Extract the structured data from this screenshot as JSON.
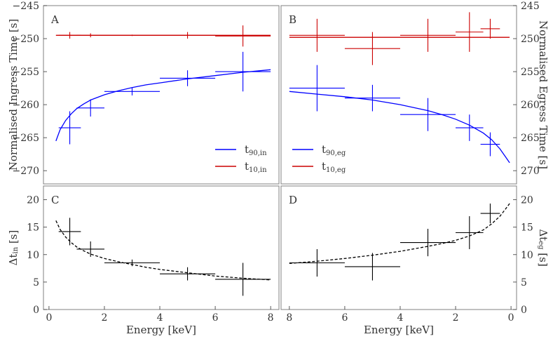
{
  "chart_data": [
    {
      "panel": "A",
      "type": "scatter",
      "ylabel": "Normalised Ingress Time [s]",
      "xlabel": "",
      "xlim": [
        -0.2,
        8.3
      ],
      "ylim": [
        -272,
        -245
      ],
      "yticks": [
        -245,
        -250,
        -255,
        -260,
        -265,
        -270
      ],
      "legend": {
        "position": "bottom-right",
        "entries": [
          {
            "label_base": "t",
            "label_sub": "90,in",
            "color": "#0000ff"
          },
          {
            "label_base": "t",
            "label_sub": "10,in",
            "color": "#cc0000"
          }
        ]
      },
      "series": [
        {
          "name": "t90,in",
          "color": "#0000ff",
          "points": [
            {
              "x": 0.75,
              "y": -263.5,
              "xerr": 0.4,
              "yerr": 2.5
            },
            {
              "x": 1.5,
              "y": -260.5,
              "xerr": 0.5,
              "yerr": 1.3
            },
            {
              "x": 3.0,
              "y": -258.0,
              "xerr": 1.0,
              "yerr": 0.6
            },
            {
              "x": 5.0,
              "y": -256.0,
              "xerr": 1.0,
              "yerr": 1.2
            },
            {
              "x": 7.0,
              "y": -255.0,
              "xerr": 1.0,
              "yerr": 3.0
            }
          ],
          "fit": {
            "x": [
              0.25,
              0.4,
              0.6,
              0.8,
              1.0,
              1.25,
              1.5,
              2.0,
              2.5,
              3.0,
              3.5,
              4.0,
              5.0,
              6.0,
              7.0,
              8.0
            ],
            "y": [
              -265.5,
              -263.8,
              -262.4,
              -261.4,
              -260.6,
              -259.9,
              -259.3,
              -258.5,
              -257.9,
              -257.4,
              -257.0,
              -256.7,
              -256.1,
              -255.6,
              -255.1,
              -254.7
            ]
          }
        },
        {
          "name": "t10,in",
          "color": "#cc0000",
          "points": [
            {
              "x": 0.75,
              "y": -249.5,
              "xerr": 0.4,
              "yerr": 0.5
            },
            {
              "x": 1.5,
              "y": -249.5,
              "xerr": 0.5,
              "yerr": 0.3
            },
            {
              "x": 3.0,
              "y": -249.5,
              "xerr": 1.0,
              "yerr": 0.1
            },
            {
              "x": 5.0,
              "y": -249.5,
              "xerr": 1.0,
              "yerr": 0.5
            },
            {
              "x": 7.0,
              "y": -249.6,
              "xerr": 1.0,
              "yerr": 1.6
            }
          ],
          "fit": {
            "x": [
              0.25,
              8.0
            ],
            "y": [
              -249.5,
              -249.5
            ]
          }
        }
      ]
    },
    {
      "panel": "B",
      "type": "scatter",
      "ylabel": "Normalised Egress Time [s]",
      "xlabel": "",
      "xlim": [
        8.3,
        -0.2
      ],
      "ylim": [
        272,
        245
      ],
      "yticks": [
        245,
        250,
        255,
        260,
        265,
        270
      ],
      "legend": {
        "position": "bottom-left",
        "entries": [
          {
            "label_base": "t",
            "label_sub": "90,eg",
            "color": "#0000ff"
          },
          {
            "label_base": "t",
            "label_sub": "10,eg",
            "color": "#cc0000"
          }
        ]
      },
      "series": [
        {
          "name": "t90,eg",
          "color": "#0000ff",
          "points": [
            {
              "x": 7.0,
              "y": 257.5,
              "xerr": 1.0,
              "yerr": 3.5
            },
            {
              "x": 5.0,
              "y": 259.0,
              "xerr": 1.0,
              "yerr": 2.0
            },
            {
              "x": 3.0,
              "y": 261.5,
              "xerr": 1.0,
              "yerr": 2.5
            },
            {
              "x": 1.5,
              "y": 263.5,
              "xerr": 0.5,
              "yerr": 2.0
            },
            {
              "x": 0.75,
              "y": 266.0,
              "xerr": 0.35,
              "yerr": 1.8
            }
          ],
          "fit": {
            "x": [
              8.0,
              7.0,
              6.0,
              5.0,
              4.0,
              3.0,
              2.5,
              2.0,
              1.5,
              1.0,
              0.7,
              0.4,
              0.2,
              0.05
            ],
            "y": [
              258.0,
              258.4,
              258.8,
              259.3,
              260.0,
              260.9,
              261.5,
              262.2,
              263.1,
              264.3,
              265.3,
              266.7,
              267.9,
              268.8
            ]
          }
        },
        {
          "name": "t10,eg",
          "color": "#cc0000",
          "points": [
            {
              "x": 7.0,
              "y": 249.5,
              "xerr": 1.0,
              "yerr": 2.5
            },
            {
              "x": 5.0,
              "y": 251.5,
              "xerr": 1.0,
              "yerr": 2.5
            },
            {
              "x": 3.0,
              "y": 249.5,
              "xerr": 1.0,
              "yerr": 2.5
            },
            {
              "x": 1.5,
              "y": 249.0,
              "xerr": 0.5,
              "yerr": 3.0
            },
            {
              "x": 0.75,
              "y": 248.5,
              "xerr": 0.35,
              "yerr": 1.5
            }
          ],
          "fit": {
            "x": [
              8.0,
              0.05
            ],
            "y": [
              249.8,
              249.8
            ]
          }
        }
      ]
    },
    {
      "panel": "C",
      "type": "scatter",
      "ylabel_base": "Δt",
      "ylabel_sub": "in",
      "ylabel_unit": " [s]",
      "xlabel": "Energy [keV]",
      "xlim": [
        -0.2,
        8.3
      ],
      "ylim": [
        0,
        22.5
      ],
      "xticks": [
        0,
        2,
        4,
        6,
        8
      ],
      "yticks": [
        0,
        5,
        10,
        15,
        20
      ],
      "series": [
        {
          "name": "Δt_in",
          "color": "#000000",
          "points": [
            {
              "x": 0.75,
              "y": 14.2,
              "xerr": 0.4,
              "yerr": 2.5
            },
            {
              "x": 1.5,
              "y": 11.0,
              "xerr": 0.5,
              "yerr": 1.4
            },
            {
              "x": 3.0,
              "y": 8.5,
              "xerr": 1.0,
              "yerr": 0.6
            },
            {
              "x": 5.0,
              "y": 6.5,
              "xerr": 1.0,
              "yerr": 1.2
            },
            {
              "x": 7.0,
              "y": 5.5,
              "xerr": 1.0,
              "yerr": 3.0
            }
          ],
          "fit": {
            "x": [
              0.25,
              0.4,
              0.6,
              0.8,
              1.0,
              1.25,
              1.5,
              2.0,
              2.5,
              3.0,
              3.5,
              4.0,
              5.0,
              6.0,
              7.0,
              8.0
            ],
            "y": [
              16.2,
              14.6,
              13.2,
              12.2,
              11.4,
              10.7,
              10.1,
              9.3,
              8.7,
              8.2,
              7.7,
              7.3,
              6.7,
              6.1,
              5.7,
              5.4
            ]
          }
        }
      ]
    },
    {
      "panel": "D",
      "type": "scatter",
      "ylabel_base": "Δt",
      "ylabel_sub": "eg",
      "ylabel_unit": " [s]",
      "xlabel": "Energy [keV]",
      "xlim": [
        8.3,
        -0.2
      ],
      "ylim": [
        0,
        22.5
      ],
      "xticks": [
        8,
        6,
        4,
        2,
        0
      ],
      "yticks": [
        0,
        5,
        10,
        15,
        20
      ],
      "series": [
        {
          "name": "Δt_eg",
          "color": "#000000",
          "points": [
            {
              "x": 7.0,
              "y": 8.5,
              "xerr": 1.0,
              "yerr": 2.5
            },
            {
              "x": 5.0,
              "y": 7.8,
              "xerr": 1.0,
              "yerr": 2.5
            },
            {
              "x": 3.0,
              "y": 12.2,
              "xerr": 1.0,
              "yerr": 2.5
            },
            {
              "x": 1.5,
              "y": 14.0,
              "xerr": 0.5,
              "yerr": 3.0
            },
            {
              "x": 0.75,
              "y": 17.5,
              "xerr": 0.35,
              "yerr": 1.8
            }
          ],
          "fit": {
            "x": [
              8.0,
              7.0,
              6.0,
              5.0,
              4.0,
              3.0,
              2.5,
              2.0,
              1.5,
              1.0,
              0.7,
              0.4,
              0.2,
              0.05
            ],
            "y": [
              8.4,
              8.8,
              9.3,
              9.9,
              10.6,
              11.5,
              12.0,
              12.6,
              13.4,
              14.5,
              15.6,
              17.0,
              18.3,
              19.3
            ]
          }
        }
      ]
    }
  ]
}
